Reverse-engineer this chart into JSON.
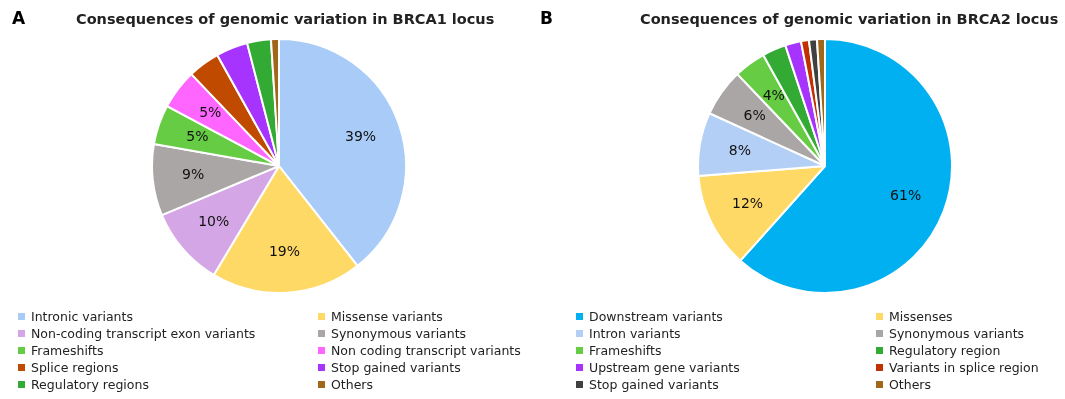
{
  "chart_data": [
    {
      "type": "pie",
      "title": "Consequences of genomic variation in BRCA1 locus",
      "annotations": [
        "A"
      ],
      "legend": "bottom",
      "categories": [
        "Intronic variants",
        "Missense variants",
        "Non-coding transcript exon variants",
        "Synonymous variants",
        "Frameshifts",
        "Non coding transcript variants",
        "Splice regions",
        "Stop gained variants",
        "Regulatory regions",
        "Others"
      ],
      "values": [
        39,
        19,
        10,
        9,
        5,
        5,
        4,
        4,
        3,
        1
      ],
      "value_labels": [
        "39%",
        "19%",
        "10%",
        "9%",
        "5%",
        "5%",
        null,
        null,
        null,
        null
      ],
      "colors": [
        "#a9cbf7",
        "#ffd966",
        "#d4a6e6",
        "#aaa6a6",
        "#66cc44",
        "#ff66ff",
        "#c04a00",
        "#a733ff",
        "#33aa33",
        "#a0661a"
      ]
    },
    {
      "type": "pie",
      "title": "Consequences of genomic variation in BRCA2 locus",
      "annotations": [
        "B"
      ],
      "legend": "bottom",
      "categories": [
        "Downstream variants",
        "Missenses",
        "Intron variants",
        "Synonymous variants",
        "Frameshifts",
        "Regulatory region",
        "Upstream gene variants",
        "Variants in splice region",
        "Stop gained variants",
        "Others"
      ],
      "values": [
        61,
        12,
        8,
        6,
        4,
        3,
        2,
        1,
        1,
        1
      ],
      "value_labels": [
        "61%",
        "12%",
        "8%",
        "6%",
        "4%",
        null,
        null,
        null,
        null,
        null
      ],
      "colors": [
        "#00b0f0",
        "#ffd966",
        "#b4cff5",
        "#aaa6a6",
        "#66cc44",
        "#33aa33",
        "#a733ff",
        "#c03000",
        "#404040",
        "#a0661a"
      ]
    }
  ]
}
